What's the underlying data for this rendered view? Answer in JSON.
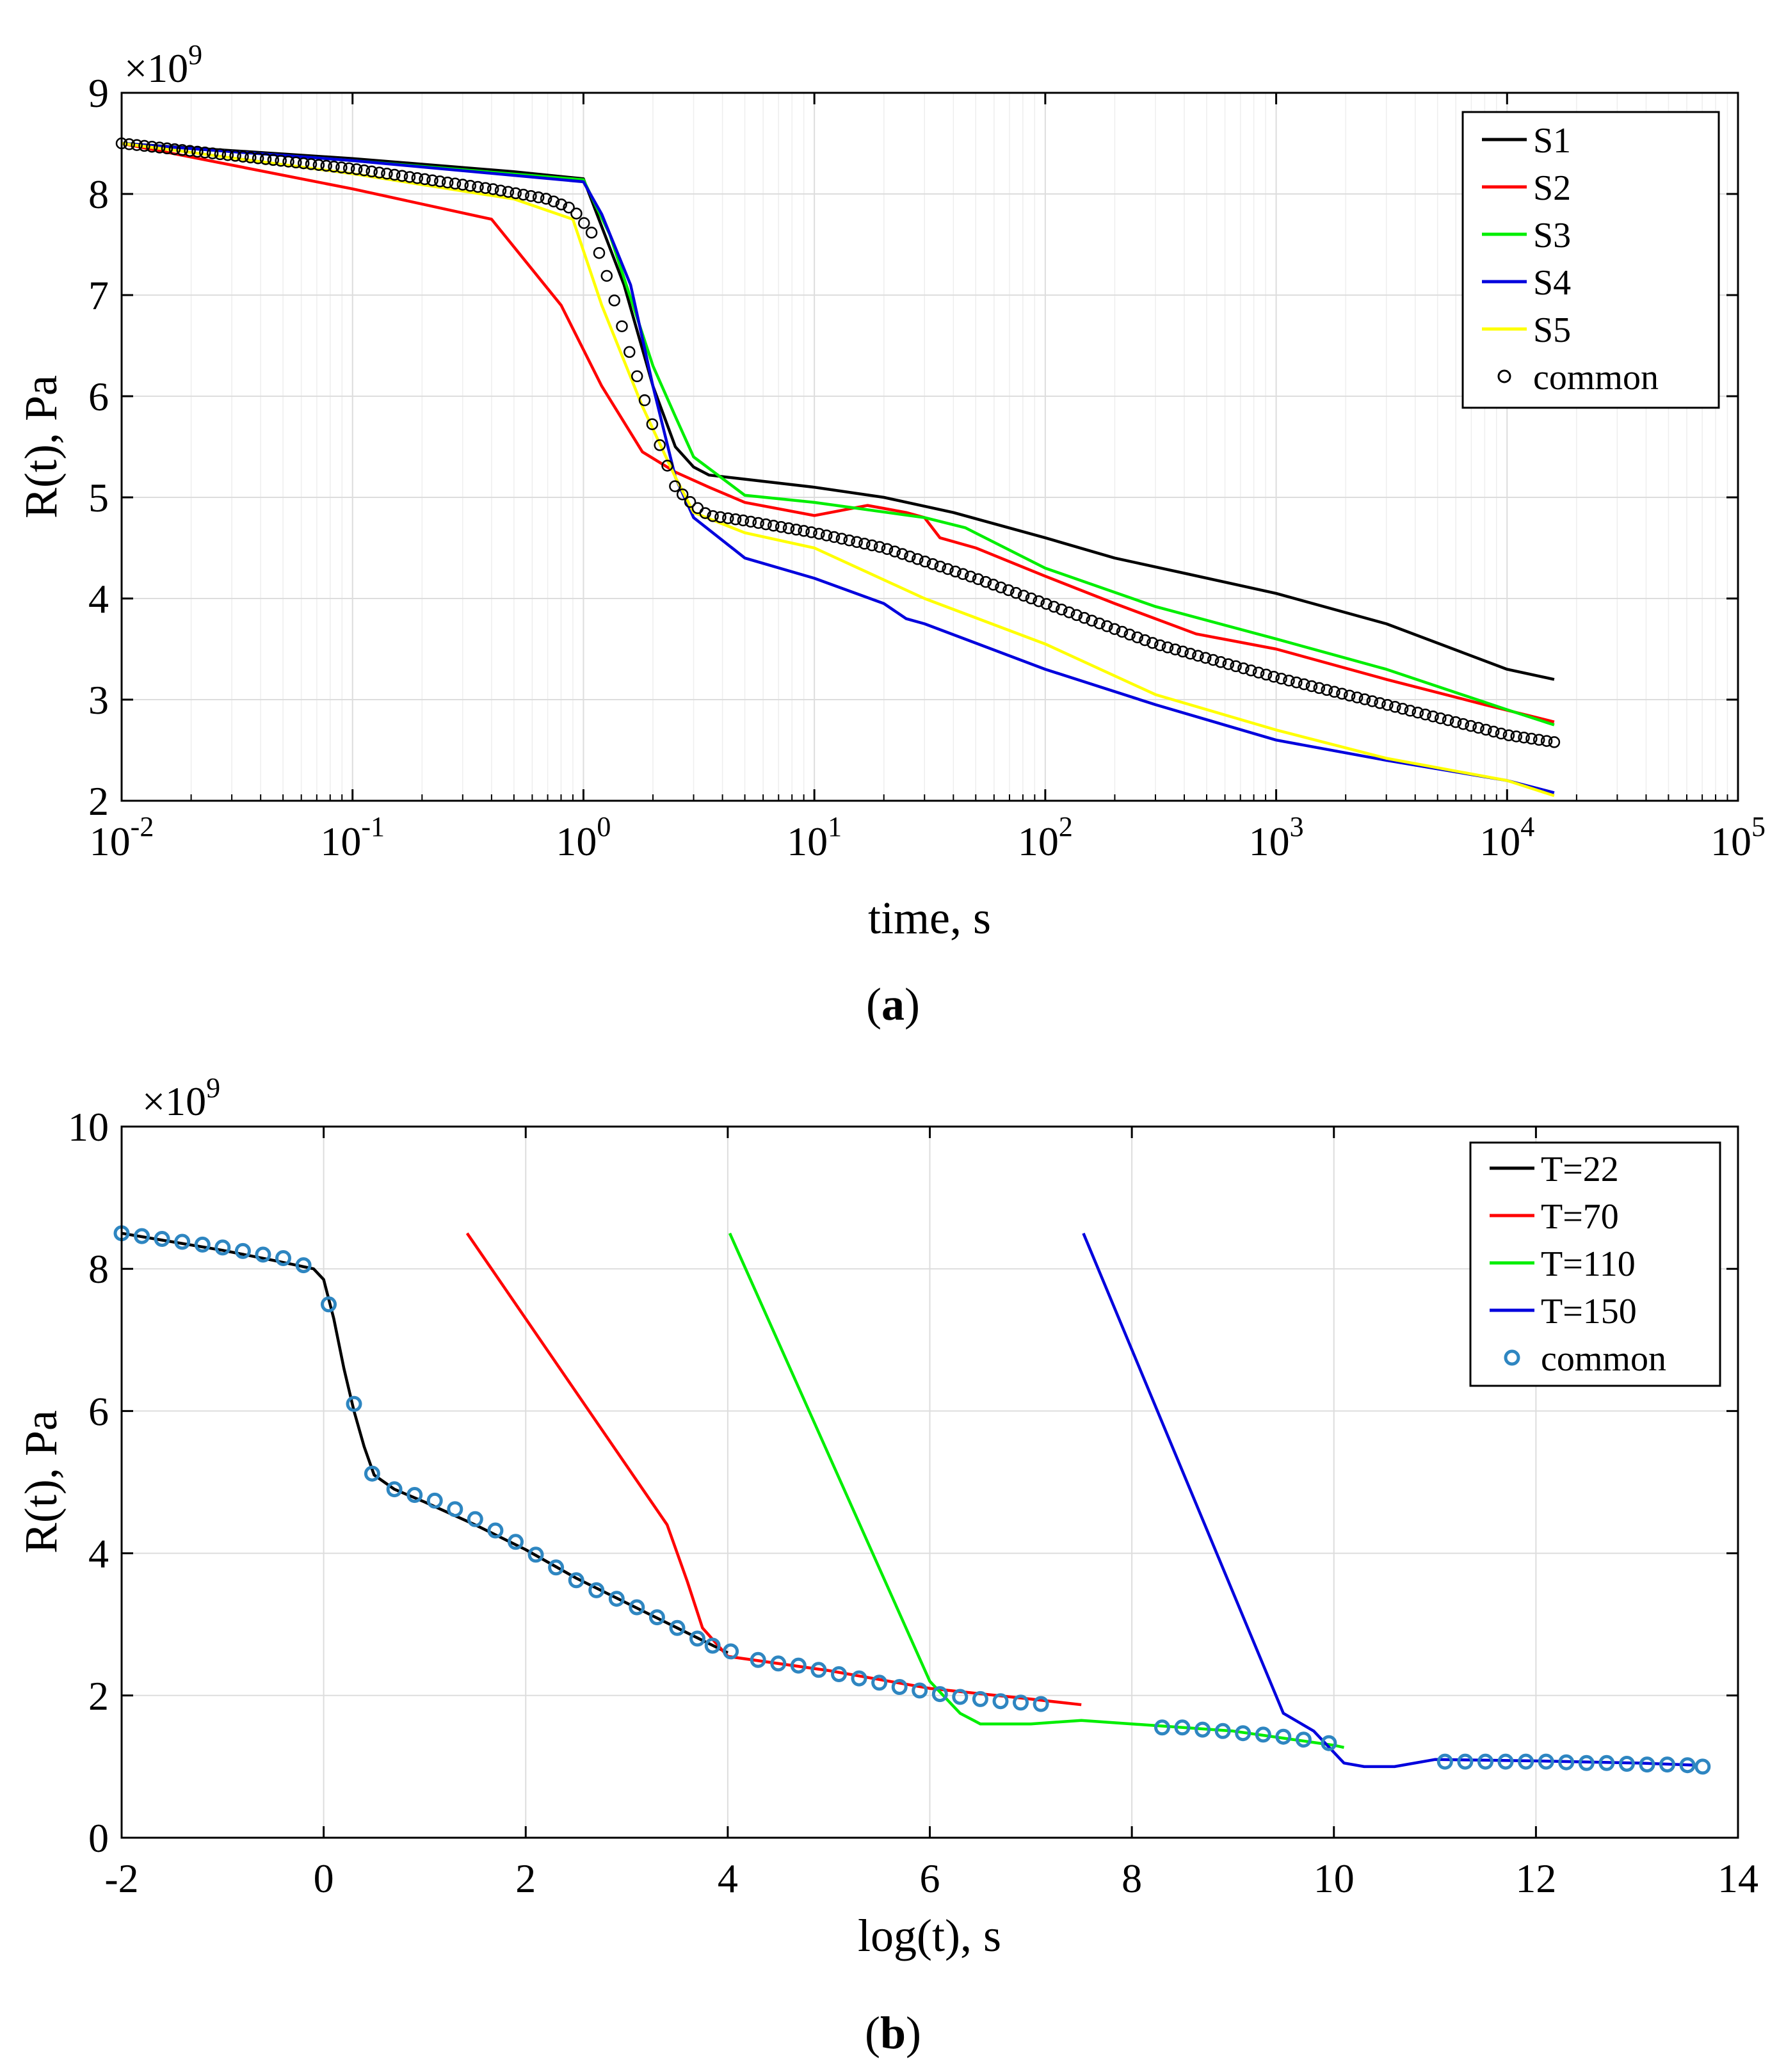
{
  "chart_data": [
    {
      "panel_label": "a",
      "type": "line",
      "xscale": "log",
      "xlabel": "time, s",
      "ylabel": "R(t), Pa",
      "y_multiplier": "×10",
      "y_multiplier_exp": "9",
      "xlim": [
        0.01,
        100000
      ],
      "ylim": [
        2,
        9
      ],
      "grid": true,
      "legend_position": "top-right",
      "x_ticks": [
        {
          "base": "10",
          "exp": "-2",
          "value": 0.01
        },
        {
          "base": "10",
          "exp": "-1",
          "value": 0.1
        },
        {
          "base": "10",
          "exp": "0",
          "value": 1
        },
        {
          "base": "10",
          "exp": "1",
          "value": 10
        },
        {
          "base": "10",
          "exp": "2",
          "value": 100
        },
        {
          "base": "10",
          "exp": "3",
          "value": 1000
        },
        {
          "base": "10",
          "exp": "4",
          "value": 10000
        },
        {
          "base": "10",
          "exp": "5",
          "value": 100000
        }
      ],
      "y_ticks": [
        "2",
        "3",
        "4",
        "5",
        "6",
        "7",
        "8",
        "9"
      ],
      "series": [
        {
          "name": "S1",
          "color": "#000000",
          "style": "line",
          "x": [
            0.01,
            0.1,
            0.5,
            1,
            1.5,
            2,
            2.5,
            3,
            3.5,
            5,
            10,
            20,
            40,
            100,
            200,
            400,
            1000,
            3000,
            10000,
            16000
          ],
          "y": [
            8.5,
            8.35,
            8.22,
            8.15,
            7.1,
            6.1,
            5.5,
            5.3,
            5.22,
            5.18,
            5.1,
            5.0,
            4.85,
            4.6,
            4.4,
            4.25,
            4.05,
            3.75,
            3.3,
            3.2
          ]
        },
        {
          "name": "S2",
          "color": "#ff0000",
          "style": "line",
          "x": [
            0.01,
            0.1,
            0.4,
            0.8,
            1.2,
            1.8,
            2.5,
            3.5,
            5,
            10,
            17,
            25,
            30,
            35,
            50,
            100,
            200,
            450,
            1000,
            3000,
            8000,
            16000
          ],
          "y": [
            8.5,
            8.05,
            7.75,
            6.9,
            6.1,
            5.45,
            5.25,
            5.1,
            4.95,
            4.82,
            4.92,
            4.85,
            4.8,
            4.6,
            4.5,
            4.22,
            3.95,
            3.65,
            3.5,
            3.2,
            2.95,
            2.78
          ]
        },
        {
          "name": "S3",
          "color": "#00ee00",
          "style": "line",
          "x": [
            0.01,
            0.1,
            1,
            1.3,
            2,
            2.5,
            3,
            5,
            10,
            30,
            45,
            100,
            300,
            1000,
            3000,
            10000,
            16000
          ],
          "y": [
            8.5,
            8.33,
            8.14,
            7.6,
            6.3,
            5.8,
            5.4,
            5.02,
            4.95,
            4.8,
            4.7,
            4.3,
            3.92,
            3.6,
            3.3,
            2.9,
            2.75
          ]
        },
        {
          "name": "S4",
          "color": "#0000dd",
          "style": "line",
          "x": [
            0.01,
            0.1,
            1,
            1.2,
            1.6,
            2,
            2.5,
            3,
            5,
            10,
            20,
            25,
            30,
            100,
            300,
            1000,
            3000,
            10000,
            16000
          ],
          "y": [
            8.5,
            8.33,
            8.12,
            7.8,
            7.1,
            6.1,
            5.2,
            4.8,
            4.4,
            4.2,
            3.95,
            3.8,
            3.75,
            3.3,
            2.95,
            2.6,
            2.4,
            2.2,
            2.08
          ]
        },
        {
          "name": "S5",
          "color": "#ffff00",
          "style": "line",
          "x": [
            0.01,
            0.1,
            0.5,
            0.9,
            1.2,
            1.8,
            2.5,
            3,
            5,
            10,
            30,
            100,
            300,
            1000,
            3000,
            10000,
            16000
          ],
          "y": [
            8.5,
            8.2,
            7.95,
            7.75,
            6.9,
            5.9,
            5.2,
            4.85,
            4.65,
            4.5,
            4.0,
            3.55,
            3.05,
            2.7,
            2.42,
            2.2,
            2.05
          ]
        },
        {
          "name": "common",
          "color": "#000000",
          "style": "markers",
          "marker": "open-circle",
          "x": [
            0.01,
            0.1,
            0.4,
            0.7,
            0.9,
            1.1,
            1.3,
            1.6,
            2,
            2.5,
            3,
            3.5,
            5,
            10,
            20,
            50,
            100,
            300,
            1000,
            3000,
            10000,
            16000
          ],
          "y": [
            8.5,
            8.25,
            8.05,
            7.95,
            7.85,
            7.6,
            7.1,
            6.4,
            5.7,
            5.1,
            4.92,
            4.82,
            4.77,
            4.65,
            4.5,
            4.2,
            3.95,
            3.55,
            3.22,
            2.95,
            2.65,
            2.58
          ]
        }
      ]
    },
    {
      "panel_label": "b",
      "type": "line",
      "xscale": "linear",
      "xlabel": "log(t), s",
      "ylabel": "R(t), Pa",
      "y_multiplier": "×10",
      "y_multiplier_exp": "9",
      "xlim": [
        -2,
        14
      ],
      "ylim": [
        0,
        10
      ],
      "grid": true,
      "legend_position": "top-right",
      "x_ticks": [
        "-2",
        "0",
        "2",
        "4",
        "6",
        "8",
        "10",
        "12",
        "14"
      ],
      "y_ticks": [
        "0",
        "2",
        "4",
        "6",
        "8",
        "10"
      ],
      "series": [
        {
          "name": "T=22",
          "color": "#000000",
          "style": "line",
          "x": [
            -2,
            -1.5,
            -1,
            -0.5,
            -0.1,
            0,
            0.1,
            0.2,
            0.3,
            0.4,
            0.5,
            0.7,
            1,
            1.5,
            2,
            2.5,
            3,
            3.5,
            4
          ],
          "y": [
            8.5,
            8.38,
            8.26,
            8.12,
            8.0,
            7.85,
            7.3,
            6.6,
            6.0,
            5.5,
            5.1,
            4.9,
            4.72,
            4.4,
            4.05,
            3.65,
            3.3,
            2.95,
            2.6
          ]
        },
        {
          "name": "T=70",
          "color": "#ff0000",
          "style": "line",
          "x": [
            1.42,
            3.4,
            3.6,
            3.75,
            4.0,
            5,
            6,
            7,
            7.5
          ],
          "y": [
            8.5,
            4.4,
            3.6,
            2.95,
            2.55,
            2.35,
            2.1,
            1.95,
            1.87
          ]
        },
        {
          "name": "T=110",
          "color": "#00ee00",
          "style": "line",
          "x": [
            4.02,
            6.0,
            6.3,
            6.5,
            7.0,
            7.5,
            8,
            9,
            10,
            10.1
          ],
          "y": [
            8.5,
            2.2,
            1.75,
            1.6,
            1.6,
            1.65,
            1.6,
            1.5,
            1.3,
            1.27
          ]
        },
        {
          "name": "T=150",
          "color": "#0000dd",
          "style": "line",
          "x": [
            7.52,
            9.5,
            9.8,
            10.1,
            10.3,
            10.6,
            11,
            12,
            13,
            13.6
          ],
          "y": [
            8.5,
            1.75,
            1.5,
            1.05,
            1.0,
            1.0,
            1.1,
            1.08,
            1.05,
            1.02
          ]
        },
        {
          "name": "common",
          "color": "#2e86c1",
          "style": "markers",
          "marker": "open-circle",
          "x": [
            -2,
            -1.8,
            -1.6,
            -1.4,
            -1.2,
            -1,
            -0.8,
            -0.6,
            -0.4,
            -0.2,
            0.05,
            0.3,
            0.48,
            0.7,
            0.9,
            1.1,
            1.3,
            1.5,
            1.7,
            1.9,
            2.1,
            2.3,
            2.5,
            2.7,
            2.9,
            3.1,
            3.3,
            3.5,
            3.7,
            3.85,
            4.03,
            4.3,
            4.5,
            4.7,
            4.9,
            5.1,
            5.3,
            5.5,
            5.7,
            5.9,
            6.1,
            6.3,
            6.5,
            6.7,
            6.9,
            7.1,
            8.3,
            8.5,
            8.7,
            8.9,
            9.1,
            9.3,
            9.5,
            9.7,
            9.95,
            11.1,
            11.3,
            11.5,
            11.7,
            11.9,
            12.1,
            12.3,
            12.5,
            12.7,
            12.9,
            13.1,
            13.3,
            13.5,
            13.65
          ],
          "y": [
            8.5,
            8.46,
            8.42,
            8.38,
            8.34,
            8.3,
            8.25,
            8.2,
            8.15,
            8.05,
            7.5,
            6.1,
            5.12,
            4.9,
            4.82,
            4.74,
            4.62,
            4.48,
            4.32,
            4.16,
            3.98,
            3.8,
            3.62,
            3.48,
            3.36,
            3.24,
            3.1,
            2.95,
            2.8,
            2.7,
            2.62,
            2.5,
            2.45,
            2.42,
            2.36,
            2.3,
            2.24,
            2.18,
            2.12,
            2.07,
            2.02,
            1.98,
            1.95,
            1.92,
            1.9,
            1.88,
            1.55,
            1.55,
            1.52,
            1.5,
            1.47,
            1.45,
            1.42,
            1.38,
            1.33,
            1.07,
            1.07,
            1.07,
            1.07,
            1.07,
            1.07,
            1.06,
            1.05,
            1.05,
            1.04,
            1.03,
            1.03,
            1.02,
            1.0
          ]
        }
      ]
    }
  ]
}
